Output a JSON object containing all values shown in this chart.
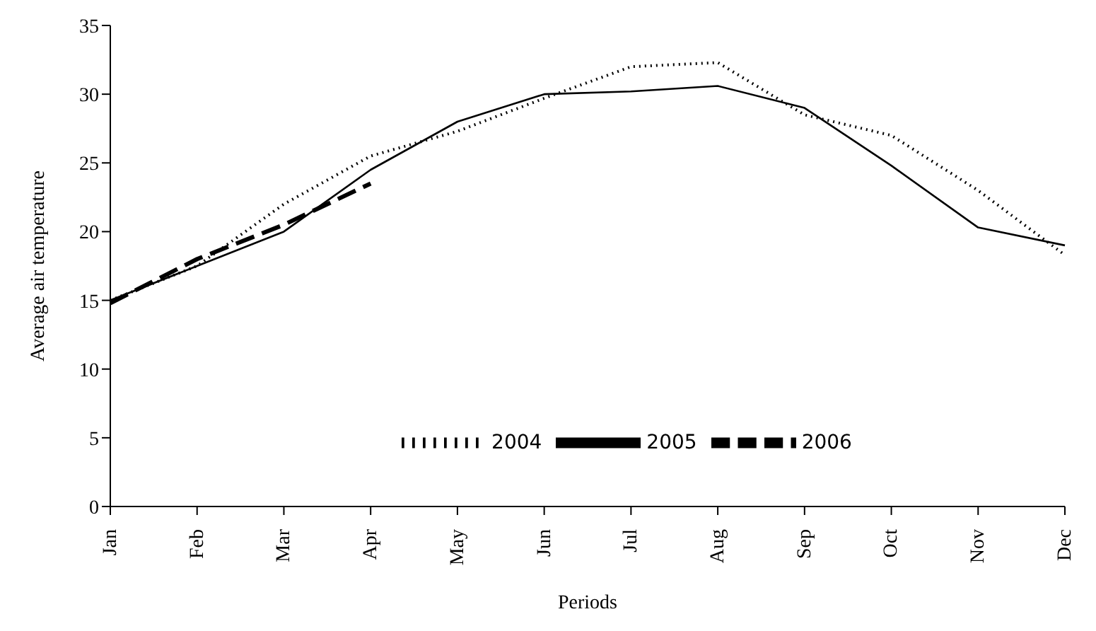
{
  "chart_data": {
    "type": "line",
    "xlabel": "Periods",
    "ylabel": "Average air temperature",
    "categories": [
      "Jan",
      "Feb",
      "Mar",
      "Apr",
      "May",
      "Jun",
      "Jul",
      "Aug",
      "Sep",
      "Oct",
      "Nov",
      "Dec"
    ],
    "series": [
      {
        "name": "2004",
        "color": "#000000",
        "line_style": "dotted",
        "values": [
          15,
          17.5,
          22,
          25.5,
          27.3,
          29.7,
          32,
          32.3,
          28.5,
          27,
          23,
          18.3
        ]
      },
      {
        "name": "2005",
        "color": "#000000",
        "line_style": "solid",
        "values": [
          15,
          17.5,
          20,
          24.5,
          28,
          30,
          30.2,
          30.6,
          29,
          24.8,
          20.3,
          19
        ]
      },
      {
        "name": "2006",
        "color": "#000000",
        "line_style": "dashed",
        "values": [
          14.8,
          18,
          20.5,
          23.5,
          null,
          null,
          null,
          null,
          null,
          null,
          null,
          null
        ]
      }
    ],
    "ylim": [
      0,
      35
    ],
    "yticks": [
      0,
      5,
      10,
      15,
      20,
      25,
      30,
      35
    ],
    "grid": false,
    "legend": "bottom",
    "marker": "none"
  }
}
